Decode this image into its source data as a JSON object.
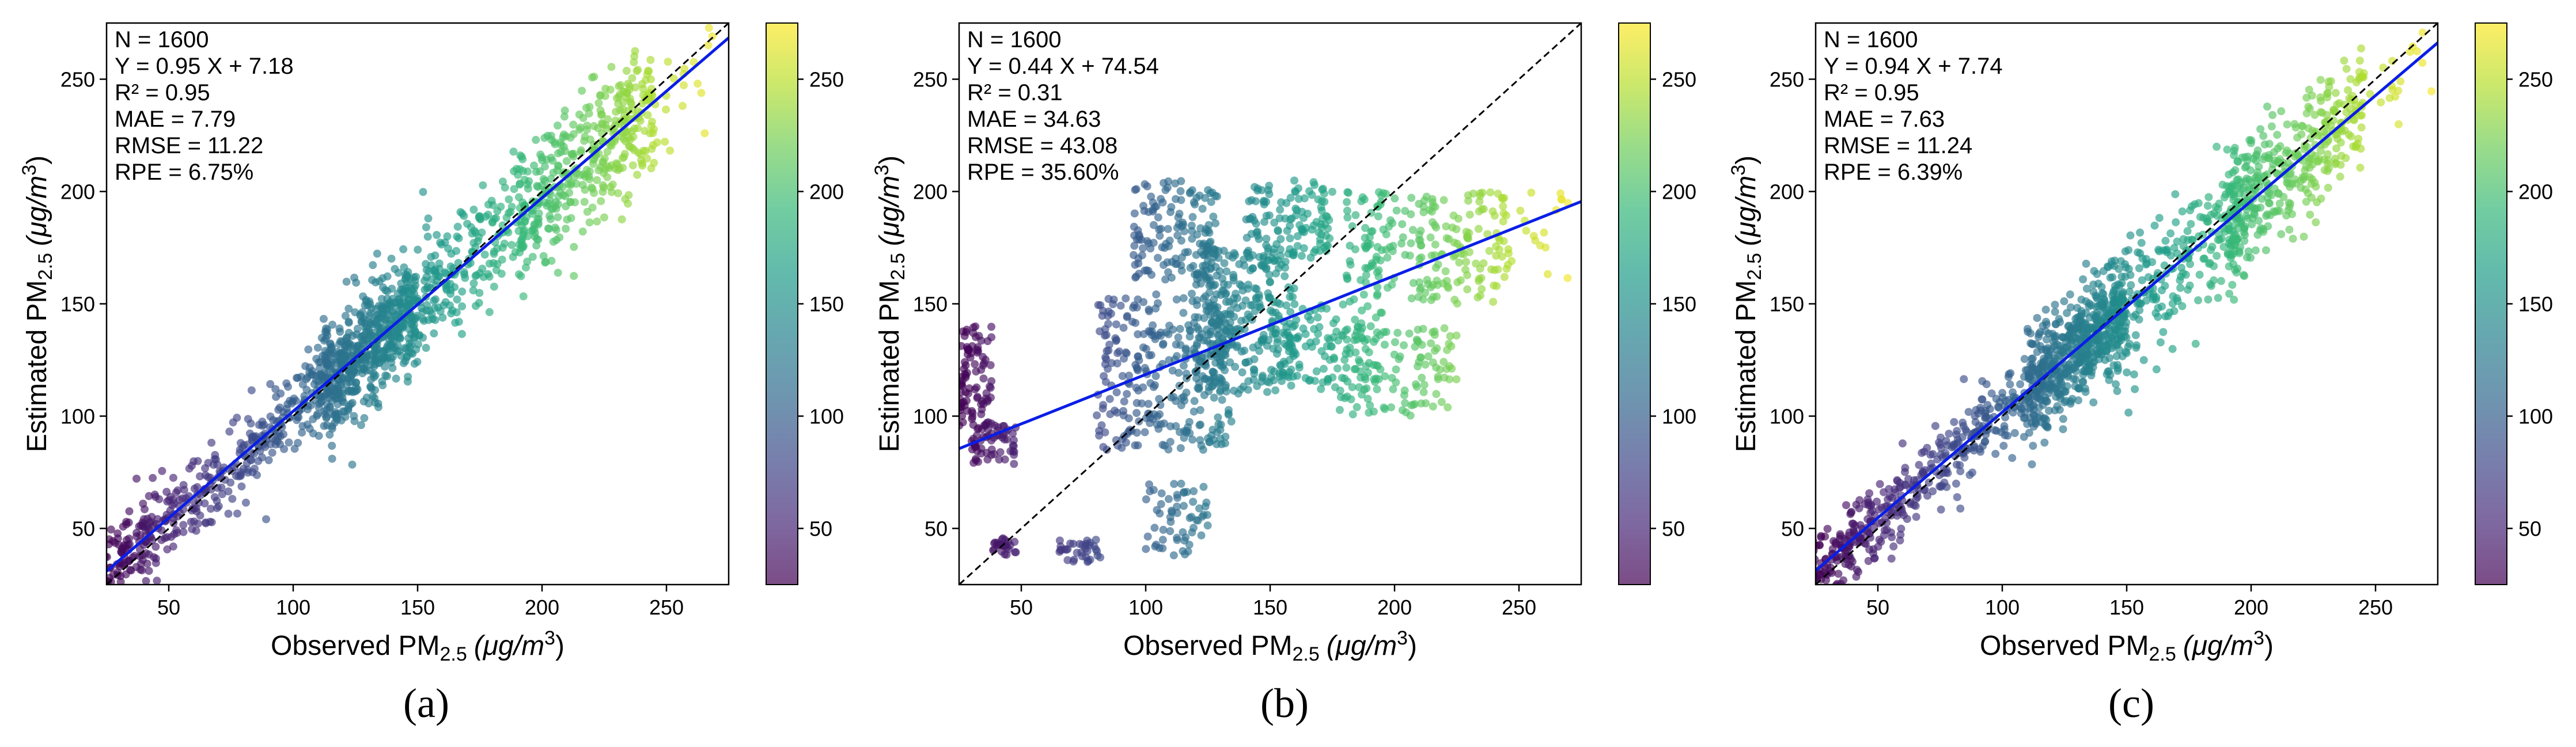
{
  "figure": {
    "colormap": "viridis",
    "point_opacity": 0.65,
    "fit_line_color": "#0a1ee6",
    "identity_line_color": "#000000"
  },
  "chart_data": [
    {
      "type": "scatter",
      "panel_label": "(a)",
      "xlabel_prefix": "Observed PM",
      "xlabel_sub": "2.5",
      "xlabel_unit": "(μg/m",
      "xlabel_sup": "3",
      "xlabel_close": ")",
      "ylabel_prefix": "Estimated PM",
      "ylabel_sub": "2.5",
      "ylabel_unit": "(μg/m",
      "ylabel_sup": "3",
      "ylabel_close": ")",
      "xlim": [
        25,
        275
      ],
      "ylim": [
        25,
        275
      ],
      "xticks": [
        50,
        100,
        150,
        200,
        250
      ],
      "yticks": [
        50,
        100,
        150,
        200,
        250
      ],
      "colorbar": {
        "range": [
          25,
          275
        ],
        "ticks": [
          50,
          100,
          150,
          200,
          250
        ]
      },
      "stats": [
        "N = 1600",
        "Y = 0.95 X + 7.18",
        "R² = 0.95",
        "MAE = 7.79",
        "RMSE = 11.22",
        "RPE = 6.75%"
      ],
      "fit": {
        "slope": 0.95,
        "intercept": 7.18
      },
      "n_points": 1600,
      "groups": [
        {
          "x": [
            22,
            48
          ],
          "y_mode": "fit",
          "scatter": 10,
          "n": 140
        },
        {
          "x": [
            48,
            110
          ],
          "y_mode": "fit",
          "scatter": 9,
          "n": 260
        },
        {
          "x": [
            110,
            150
          ],
          "y_mode": "fit",
          "scatter": 12,
          "n": 600
        },
        {
          "x": [
            150,
            195
          ],
          "y_mode": "fit",
          "scatter": 14,
          "n": 200
        },
        {
          "x": [
            190,
            245
          ],
          "y_mode": "fit",
          "scatter": 15,
          "n": 380
        },
        {
          "x": [
            245,
            275
          ],
          "y_mode": "fit",
          "scatter": 12,
          "n": 20
        }
      ]
    },
    {
      "type": "scatter",
      "panel_label": "(b)",
      "xlabel_prefix": "Observed PM",
      "xlabel_sub": "2.5",
      "xlabel_unit": "(μg/m",
      "xlabel_sup": "3",
      "xlabel_close": ")",
      "ylabel_prefix": "Estimated PM",
      "ylabel_sub": "2.5",
      "ylabel_unit": "(μg/m",
      "ylabel_sup": "3",
      "ylabel_close": ")",
      "xlim": [
        25,
        275
      ],
      "ylim": [
        25,
        275
      ],
      "xticks": [
        50,
        100,
        150,
        200,
        250
      ],
      "yticks": [
        50,
        100,
        150,
        200,
        250
      ],
      "colorbar": {
        "range": [
          25,
          275
        ],
        "ticks": [
          50,
          100,
          150,
          200,
          250
        ]
      },
      "stats": [
        "N = 1600",
        "Y = 0.44 X + 74.54",
        "R² = 0.31",
        "MAE = 34.63",
        "RMSE = 43.08",
        "RPE = 35.60%"
      ],
      "fit": {
        "slope": 0.44,
        "intercept": 74.54
      },
      "n_points": 1600,
      "groups": [
        {
          "x": [
            25,
            38
          ],
          "y": [
            95,
            140
          ],
          "n": 90
        },
        {
          "x": [
            30,
            48
          ],
          "y": [
            78,
            98
          ],
          "n": 60
        },
        {
          "x": [
            38,
            48
          ],
          "y": [
            38,
            46
          ],
          "n": 25
        },
        {
          "x": [
            65,
            82
          ],
          "y": [
            35,
            45
          ],
          "n": 35
        },
        {
          "x": [
            80,
            135
          ],
          "y": [
            85,
            155
          ],
          "n": 300
        },
        {
          "x": [
            95,
            130
          ],
          "y": [
            160,
            205
          ],
          "n": 150
        },
        {
          "x": [
            100,
            125
          ],
          "y": [
            38,
            70
          ],
          "n": 60
        },
        {
          "x": [
            120,
            160
          ],
          "y": [
            110,
            175
          ],
          "n": 280
        },
        {
          "x": [
            140,
            175
          ],
          "y": [
            170,
            205
          ],
          "n": 120
        },
        {
          "x": [
            150,
            195
          ],
          "y": [
            115,
            150
          ],
          "n": 120
        },
        {
          "x": [
            170,
            225
          ],
          "y": [
            100,
            140
          ],
          "n": 120
        },
        {
          "x": [
            180,
            245
          ],
          "y": [
            150,
            200
          ],
          "n": 210
        },
        {
          "x": [
            225,
            270
          ],
          "y": [
            160,
            200
          ],
          "n": 30
        }
      ]
    },
    {
      "type": "scatter",
      "panel_label": "(c)",
      "xlabel_prefix": "Observed PM",
      "xlabel_sub": "2.5",
      "xlabel_unit": "(μg/m",
      "xlabel_sup": "3",
      "xlabel_close": ")",
      "ylabel_prefix": "Estimated PM",
      "ylabel_sub": "2.5",
      "ylabel_unit": "(μg/m",
      "ylabel_sup": "3",
      "ylabel_close": ")",
      "xlim": [
        25,
        275
      ],
      "ylim": [
        25,
        275
      ],
      "xticks": [
        50,
        100,
        150,
        200,
        250
      ],
      "yticks": [
        50,
        100,
        150,
        200,
        250
      ],
      "colorbar": {
        "range": [
          25,
          275
        ],
        "ticks": [
          50,
          100,
          150,
          200,
          250
        ]
      },
      "stats": [
        "N = 1600",
        "Y = 0.94 X + 7.74",
        "R² = 0.95",
        "MAE = 7.63",
        "RMSE = 11.24",
        "RPE = 6.39%"
      ],
      "fit": {
        "slope": 0.94,
        "intercept": 7.74
      },
      "n_points": 1600,
      "groups": [
        {
          "x": [
            22,
            48
          ],
          "y_mode": "fit",
          "scatter": 9,
          "n": 140
        },
        {
          "x": [
            48,
            110
          ],
          "y_mode": "fit",
          "scatter": 9,
          "n": 260
        },
        {
          "x": [
            110,
            150
          ],
          "y_mode": "fit",
          "scatter": 12,
          "n": 600
        },
        {
          "x": [
            150,
            195
          ],
          "y_mode": "fit",
          "scatter": 14,
          "n": 200
        },
        {
          "x": [
            190,
            245
          ],
          "y_mode": "fit",
          "scatter": 15,
          "n": 380
        },
        {
          "x": [
            245,
            275
          ],
          "y_mode": "fit",
          "scatter": 12,
          "n": 20
        }
      ]
    }
  ]
}
